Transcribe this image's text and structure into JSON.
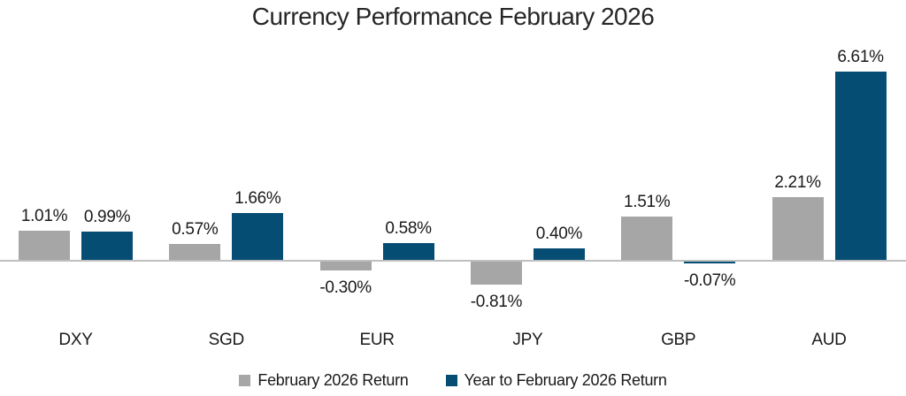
{
  "chart_data": {
    "type": "bar",
    "title": "Currency Performance February 2026",
    "categories": [
      "DXY",
      "SGD",
      "EUR",
      "JPY",
      "GBP",
      "AUD"
    ],
    "series": [
      {
        "name": "February 2026 Return",
        "color": "#a6a6a6",
        "values": [
          1.01,
          0.57,
          -0.3,
          -0.81,
          1.51,
          2.21
        ],
        "value_labels": [
          "1.01%",
          "0.57%",
          "-0.30%",
          "-0.81%",
          "1.51%",
          "2.21%"
        ]
      },
      {
        "name": "Year to February 2026 Return",
        "color": "#054d73",
        "values": [
          0.99,
          1.66,
          0.58,
          0.4,
          -0.07,
          6.61
        ],
        "value_labels": [
          "0.99%",
          "1.66%",
          "0.58%",
          "0.40%",
          "-0.07%",
          "6.61%"
        ]
      }
    ],
    "ylabel": "",
    "xlabel": "",
    "ylim": [
      -1.2,
      7.2
    ],
    "grid": false,
    "data_labels": true,
    "axis_line_color": "#bfbfbf",
    "legend_position": "bottom",
    "legend": [
      {
        "label": "February 2026 Return",
        "color": "#a6a6a6"
      },
      {
        "label": "Year to February 2026 Return",
        "color": "#054d73"
      }
    ]
  }
}
